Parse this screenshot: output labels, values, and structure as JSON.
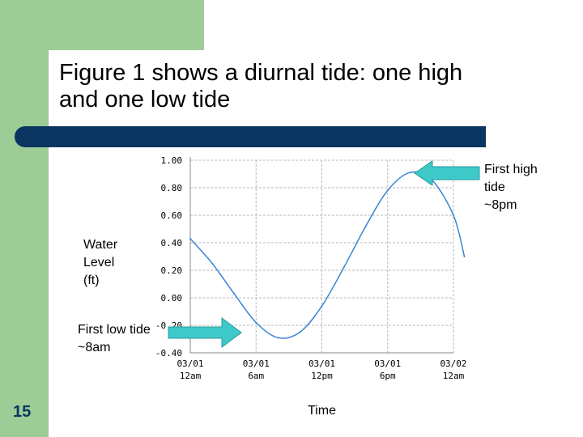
{
  "slide": {
    "title": "Figure 1 shows a diurnal tide: one high\nand one low tide",
    "slide_number": "15",
    "colors": {
      "green": "#9dcc96",
      "navy": "#0a3560",
      "arrow": "#3ec9c9",
      "line": "#3a84d4"
    }
  },
  "annotations": {
    "ylabel": "Water\nLevel\n(ft)",
    "xlabel": "Time",
    "high_tide": "First high\ntide\n~8pm",
    "low_tide": "First low tide\n~8am"
  },
  "chart_data": {
    "type": "line",
    "xlabel": "Time",
    "ylabel": "Water Level (ft)",
    "ylim": [
      -0.4,
      1.0
    ],
    "y_ticks": [
      "1.00",
      "0.80",
      "0.60",
      "0.40",
      "0.20",
      "0.00",
      "-0.20",
      "-0.40"
    ],
    "x_ticks": [
      {
        "date": "03/01",
        "time": "12am"
      },
      {
        "date": "03/01",
        "time": "6am"
      },
      {
        "date": "03/01",
        "time": "12pm"
      },
      {
        "date": "03/01",
        "time": "6pm"
      },
      {
        "date": "03/02",
        "time": "12am"
      }
    ],
    "grid": true,
    "series": [
      {
        "x": [
          "03/01 00:00",
          "03/01 02:00",
          "03/01 04:00",
          "03/01 06:00",
          "03/01 08:00",
          "03/01 10:00",
          "03/01 12:00",
          "03/01 14:00",
          "03/01 16:00",
          "03/01 18:00",
          "03/01 20:00",
          "03/01 22:00",
          "03/02 00:00",
          "03/02 01:00"
        ],
        "hours": [
          0,
          2,
          4,
          6,
          8,
          10,
          12,
          14,
          16,
          18,
          20,
          22,
          24,
          25
        ],
        "values": [
          0.43,
          0.25,
          0.03,
          -0.18,
          -0.29,
          -0.25,
          -0.06,
          0.22,
          0.52,
          0.78,
          0.91,
          0.86,
          0.6,
          0.3
        ]
      }
    ]
  }
}
